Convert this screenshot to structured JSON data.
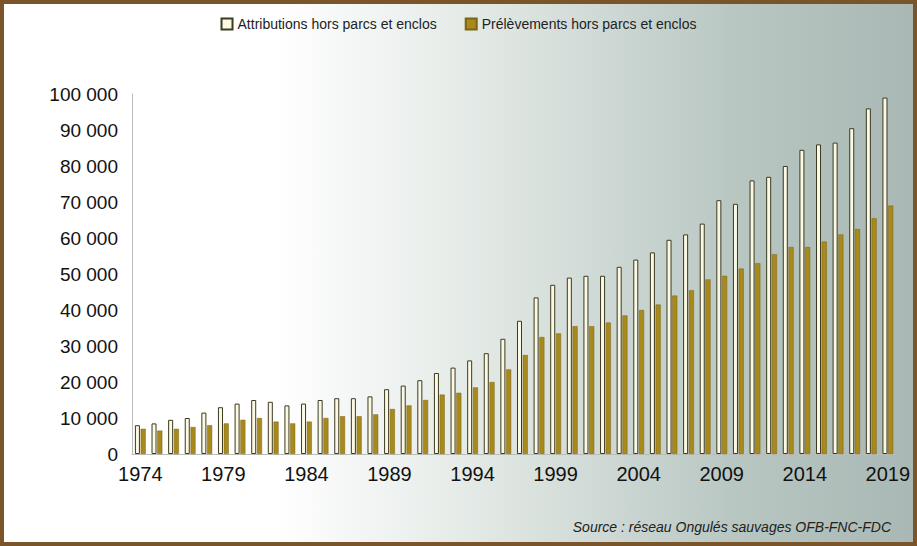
{
  "chart_data": {
    "type": "bar",
    "categories": [
      "1974",
      null,
      null,
      null,
      null,
      "1979",
      null,
      null,
      null,
      null,
      "1984",
      null,
      null,
      null,
      null,
      "1989",
      null,
      null,
      null,
      null,
      "1994",
      null,
      null,
      null,
      null,
      "1999",
      null,
      null,
      null,
      null,
      "2004",
      null,
      null,
      null,
      null,
      "2009",
      null,
      null,
      null,
      null,
      "2014",
      null,
      null,
      null,
      null,
      "2019"
    ],
    "series": [
      {
        "name": "Attributions hors parcs et enclos",
        "color": "#fbf8e4",
        "values": [
          8000,
          8500,
          9500,
          10000,
          11500,
          13000,
          14000,
          15000,
          14500,
          13500,
          14000,
          15000,
          15500,
          15500,
          16000,
          18000,
          19000,
          20500,
          22500,
          24000,
          26000,
          28000,
          32000,
          37000,
          43500,
          47000,
          49000,
          49500,
          49500,
          52000,
          54000,
          56000,
          59500,
          61000,
          64000,
          70500,
          69500,
          76000,
          77000,
          80000,
          84500,
          86000,
          86500,
          90500,
          96000,
          99000
        ]
      },
      {
        "name": "Prélèvements hors parcs et enclos",
        "color": "#a8891c",
        "values": [
          7000,
          6500,
          7000,
          7500,
          8000,
          8500,
          9500,
          10000,
          9000,
          8500,
          9000,
          10000,
          10500,
          10500,
          11000,
          12500,
          13500,
          15000,
          16500,
          17000,
          18500,
          20000,
          23500,
          27500,
          32500,
          33500,
          35500,
          35500,
          36500,
          38500,
          40000,
          41500,
          44000,
          45500,
          48500,
          49500,
          51500,
          53000,
          55500,
          57500,
          57500,
          59000,
          61000,
          62500,
          65500,
          69000
        ]
      }
    ],
    "ylim": [
      0,
      100000
    ],
    "yticks": [
      0,
      {
        "value": 10000,
        "label": "10 000"
      },
      {
        "value": 20000,
        "label": "20 000"
      },
      {
        "value": 30000,
        "label": "30 000"
      },
      {
        "value": 40000,
        "label": "40 000"
      },
      {
        "value": 50000,
        "label": "50 000"
      },
      {
        "value": 60000,
        "label": "60 000"
      },
      {
        "value": 70000,
        "label": "70 000"
      },
      {
        "value": 80000,
        "label": "80 000"
      },
      {
        "value": 90000,
        "label": "90 000"
      },
      {
        "value": 100000,
        "label": "100 000"
      }
    ],
    "annotation": "Source : réseau Ongulés sauvages OFB-FNC-FDC",
    "grid": false,
    "legend": "top"
  }
}
